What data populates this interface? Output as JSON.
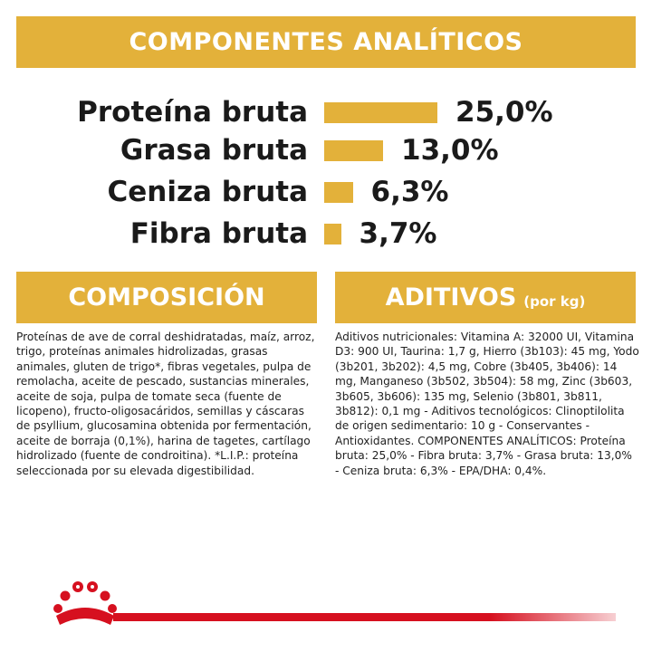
{
  "header": {
    "title": "COMPONENTES ANALÍTICOS"
  },
  "analytics": [
    {
      "label": "Proteína bruta",
      "value": "25,0%",
      "percent": 25.0
    },
    {
      "label": "Grasa bruta",
      "value": "13,0%",
      "percent": 13.0
    },
    {
      "label": "Ceniza bruta",
      "value": "6,3%",
      "percent": 6.3
    },
    {
      "label": "Fibra bruta",
      "value": "3,7%",
      "percent": 3.7
    }
  ],
  "composition": {
    "title": "COMPOSICIÓN",
    "text": "Proteínas de ave de corral deshidratadas, maíz, arroz, trigo, proteínas animales hidrolizadas, grasas animales, gluten de trigo*, fibras vegetales, pulpa de remolacha, aceite de pescado, sustancias minerales, aceite de soja, pulpa de tomate seca (fuente de licopeno), fructo-oligosacáridos, semillas y cáscaras de psyllium, glucosamina obtenida por fermentación, aceite de borraja (0,1%), harina de tagetes, cartílago hidrolizado (fuente de condroitina). *L.I.P.: proteína seleccionada por su elevada digestibilidad."
  },
  "additives": {
    "title": "ADITIVOS",
    "unit": "(por kg)",
    "text": "Aditivos nutricionales: Vitamina A: 32000 UI, Vitamina D3: 900 UI, Taurina: 1,7 g, Hierro (3b103): 45 mg, Yodo (3b201, 3b202): 4,5 mg, Cobre (3b405, 3b406): 14 mg, Manganeso (3b502, 3b504): 58 mg, Zinc (3b603, 3b605, 3b606): 135 mg, Selenio (3b801, 3b811, 3b812): 0,1 mg - Aditivos tecnológicos: Clinoptilolita de origen sedimentario: 10 g - Conservantes - Antioxidantes. COMPONENTES ANALÍTICOS: Proteína bruta: 25,0% - Fibra bruta: 3,7% - Grasa bruta: 13,0% - Ceniza bruta: 6,3% - EPA/DHA: 0,4%."
  },
  "brand": {
    "logo": "crown-logo",
    "accent": "#d6101f",
    "gold": "#e3b13a"
  }
}
